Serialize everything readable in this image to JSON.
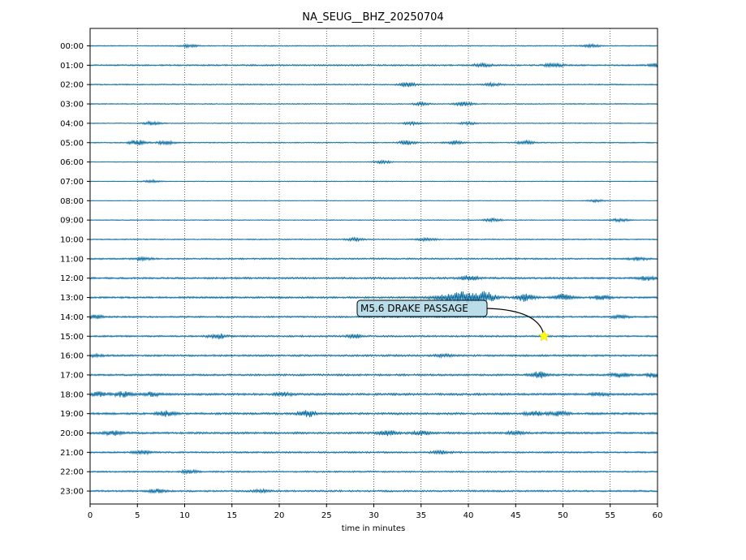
{
  "chart_data": {
    "type": "line",
    "title": "NA_SEUG__BHZ_20250704",
    "xlabel": "time in minutes",
    "ylabel": "",
    "xlim": [
      0,
      60
    ],
    "x_ticks": [
      0,
      5,
      10,
      15,
      20,
      25,
      30,
      35,
      40,
      45,
      50,
      55,
      60
    ],
    "grid": "vertical dotted lines at every 5 minutes",
    "trace_color": "#00689e",
    "rows": [
      {
        "label": "00:00",
        "amplitude": 0.12,
        "bursts": [
          {
            "x": 10.5,
            "amp": 0.3
          },
          {
            "x": 53,
            "amp": 0.3
          }
        ]
      },
      {
        "label": "01:00",
        "amplitude": 0.18,
        "bursts": [
          {
            "x": 41.5,
            "amp": 0.4
          },
          {
            "x": 49,
            "amp": 0.5
          },
          {
            "x": 60,
            "amp": 0.4
          }
        ]
      },
      {
        "label": "02:00",
        "amplitude": 0.14,
        "bursts": [
          {
            "x": 33.5,
            "amp": 0.5
          },
          {
            "x": 42.5,
            "amp": 0.35
          }
        ]
      },
      {
        "label": "03:00",
        "amplitude": 0.12,
        "bursts": [
          {
            "x": 39.5,
            "amp": 0.45
          },
          {
            "x": 35,
            "amp": 0.3
          }
        ]
      },
      {
        "label": "04:00",
        "amplitude": 0.1,
        "bursts": [
          {
            "x": 6.5,
            "amp": 0.4
          },
          {
            "x": 34,
            "amp": 0.35
          },
          {
            "x": 40,
            "amp": 0.3
          }
        ]
      },
      {
        "label": "05:00",
        "amplitude": 0.12,
        "bursts": [
          {
            "x": 5,
            "amp": 0.6
          },
          {
            "x": 8,
            "amp": 0.45
          },
          {
            "x": 33.5,
            "amp": 0.45
          },
          {
            "x": 38.5,
            "amp": 0.4
          },
          {
            "x": 46,
            "amp": 0.4
          }
        ]
      },
      {
        "label": "06:00",
        "amplitude": 0.08,
        "bursts": [
          {
            "x": 31,
            "amp": 0.3
          }
        ]
      },
      {
        "label": "07:00",
        "amplitude": 0.08,
        "bursts": [
          {
            "x": 6.5,
            "amp": 0.3
          }
        ]
      },
      {
        "label": "08:00",
        "amplitude": 0.07,
        "bursts": [
          {
            "x": 53.5,
            "amp": 0.3
          }
        ]
      },
      {
        "label": "09:00",
        "amplitude": 0.1,
        "bursts": [
          {
            "x": 42.5,
            "amp": 0.45
          },
          {
            "x": 56,
            "amp": 0.35
          }
        ]
      },
      {
        "label": "10:00",
        "amplitude": 0.13,
        "bursts": [
          {
            "x": 28,
            "amp": 0.35
          },
          {
            "x": 35.5,
            "amp": 0.3
          }
        ]
      },
      {
        "label": "11:00",
        "amplitude": 0.18,
        "bursts": [
          {
            "x": 5.5,
            "amp": 0.35
          },
          {
            "x": 58,
            "amp": 0.35
          }
        ]
      },
      {
        "label": "12:00",
        "amplitude": 0.22,
        "bursts": [
          {
            "x": 40,
            "amp": 0.6
          },
          {
            "x": 59,
            "amp": 0.5
          }
        ]
      },
      {
        "label": "13:00",
        "amplitude": 0.22,
        "bursts": [
          {
            "x": 39.5,
            "amp": 1.4
          },
          {
            "x": 42,
            "amp": 0.9
          },
          {
            "x": 46,
            "amp": 0.9
          },
          {
            "x": 50,
            "amp": 0.8
          },
          {
            "x": 54,
            "amp": 0.5
          }
        ]
      },
      {
        "label": "14:00",
        "amplitude": 0.2,
        "bursts": [
          {
            "x": 0.5,
            "amp": 0.4
          },
          {
            "x": 56,
            "amp": 0.3
          }
        ]
      },
      {
        "label": "15:00",
        "amplitude": 0.2,
        "bursts": [
          {
            "x": 13.5,
            "amp": 0.6
          },
          {
            "x": 28,
            "amp": 0.35
          }
        ]
      },
      {
        "label": "16:00",
        "amplitude": 0.22,
        "bursts": [
          {
            "x": 0.5,
            "amp": 0.3
          },
          {
            "x": 37.5,
            "amp": 0.3
          }
        ]
      },
      {
        "label": "17:00",
        "amplitude": 0.22,
        "bursts": [
          {
            "x": 47.5,
            "amp": 0.8
          },
          {
            "x": 56,
            "amp": 0.5
          },
          {
            "x": 59.5,
            "amp": 0.5
          }
        ]
      },
      {
        "label": "18:00",
        "amplitude": 0.25,
        "bursts": [
          {
            "x": 1,
            "amp": 0.5
          },
          {
            "x": 3.5,
            "amp": 0.6
          },
          {
            "x": 6.5,
            "amp": 0.45
          },
          {
            "x": 20.5,
            "amp": 0.4
          },
          {
            "x": 54,
            "amp": 0.45
          }
        ]
      },
      {
        "label": "19:00",
        "amplitude": 0.25,
        "bursts": [
          {
            "x": 8,
            "amp": 0.6
          },
          {
            "x": 23,
            "amp": 0.7
          },
          {
            "x": 47,
            "amp": 0.5
          },
          {
            "x": 49.5,
            "amp": 0.5
          }
        ]
      },
      {
        "label": "20:00",
        "amplitude": 0.25,
        "bursts": [
          {
            "x": 2.5,
            "amp": 0.5
          },
          {
            "x": 31.5,
            "amp": 0.5
          },
          {
            "x": 35,
            "amp": 0.45
          },
          {
            "x": 45,
            "amp": 0.4
          }
        ]
      },
      {
        "label": "21:00",
        "amplitude": 0.2,
        "bursts": [
          {
            "x": 5.5,
            "amp": 0.35
          },
          {
            "x": 37,
            "amp": 0.35
          }
        ]
      },
      {
        "label": "22:00",
        "amplitude": 0.18,
        "bursts": [
          {
            "x": 10.5,
            "amp": 0.35
          }
        ]
      },
      {
        "label": "23:00",
        "amplitude": 0.2,
        "bursts": [
          {
            "x": 7,
            "amp": 0.45
          },
          {
            "x": 18,
            "amp": 0.3
          }
        ]
      }
    ],
    "annotation": {
      "text": "M5.6 DRAKE PASSAGE",
      "row": "15:00",
      "x": 48,
      "marker": "star",
      "marker_color": "#ffff00",
      "box_color": "#add8e6"
    }
  }
}
